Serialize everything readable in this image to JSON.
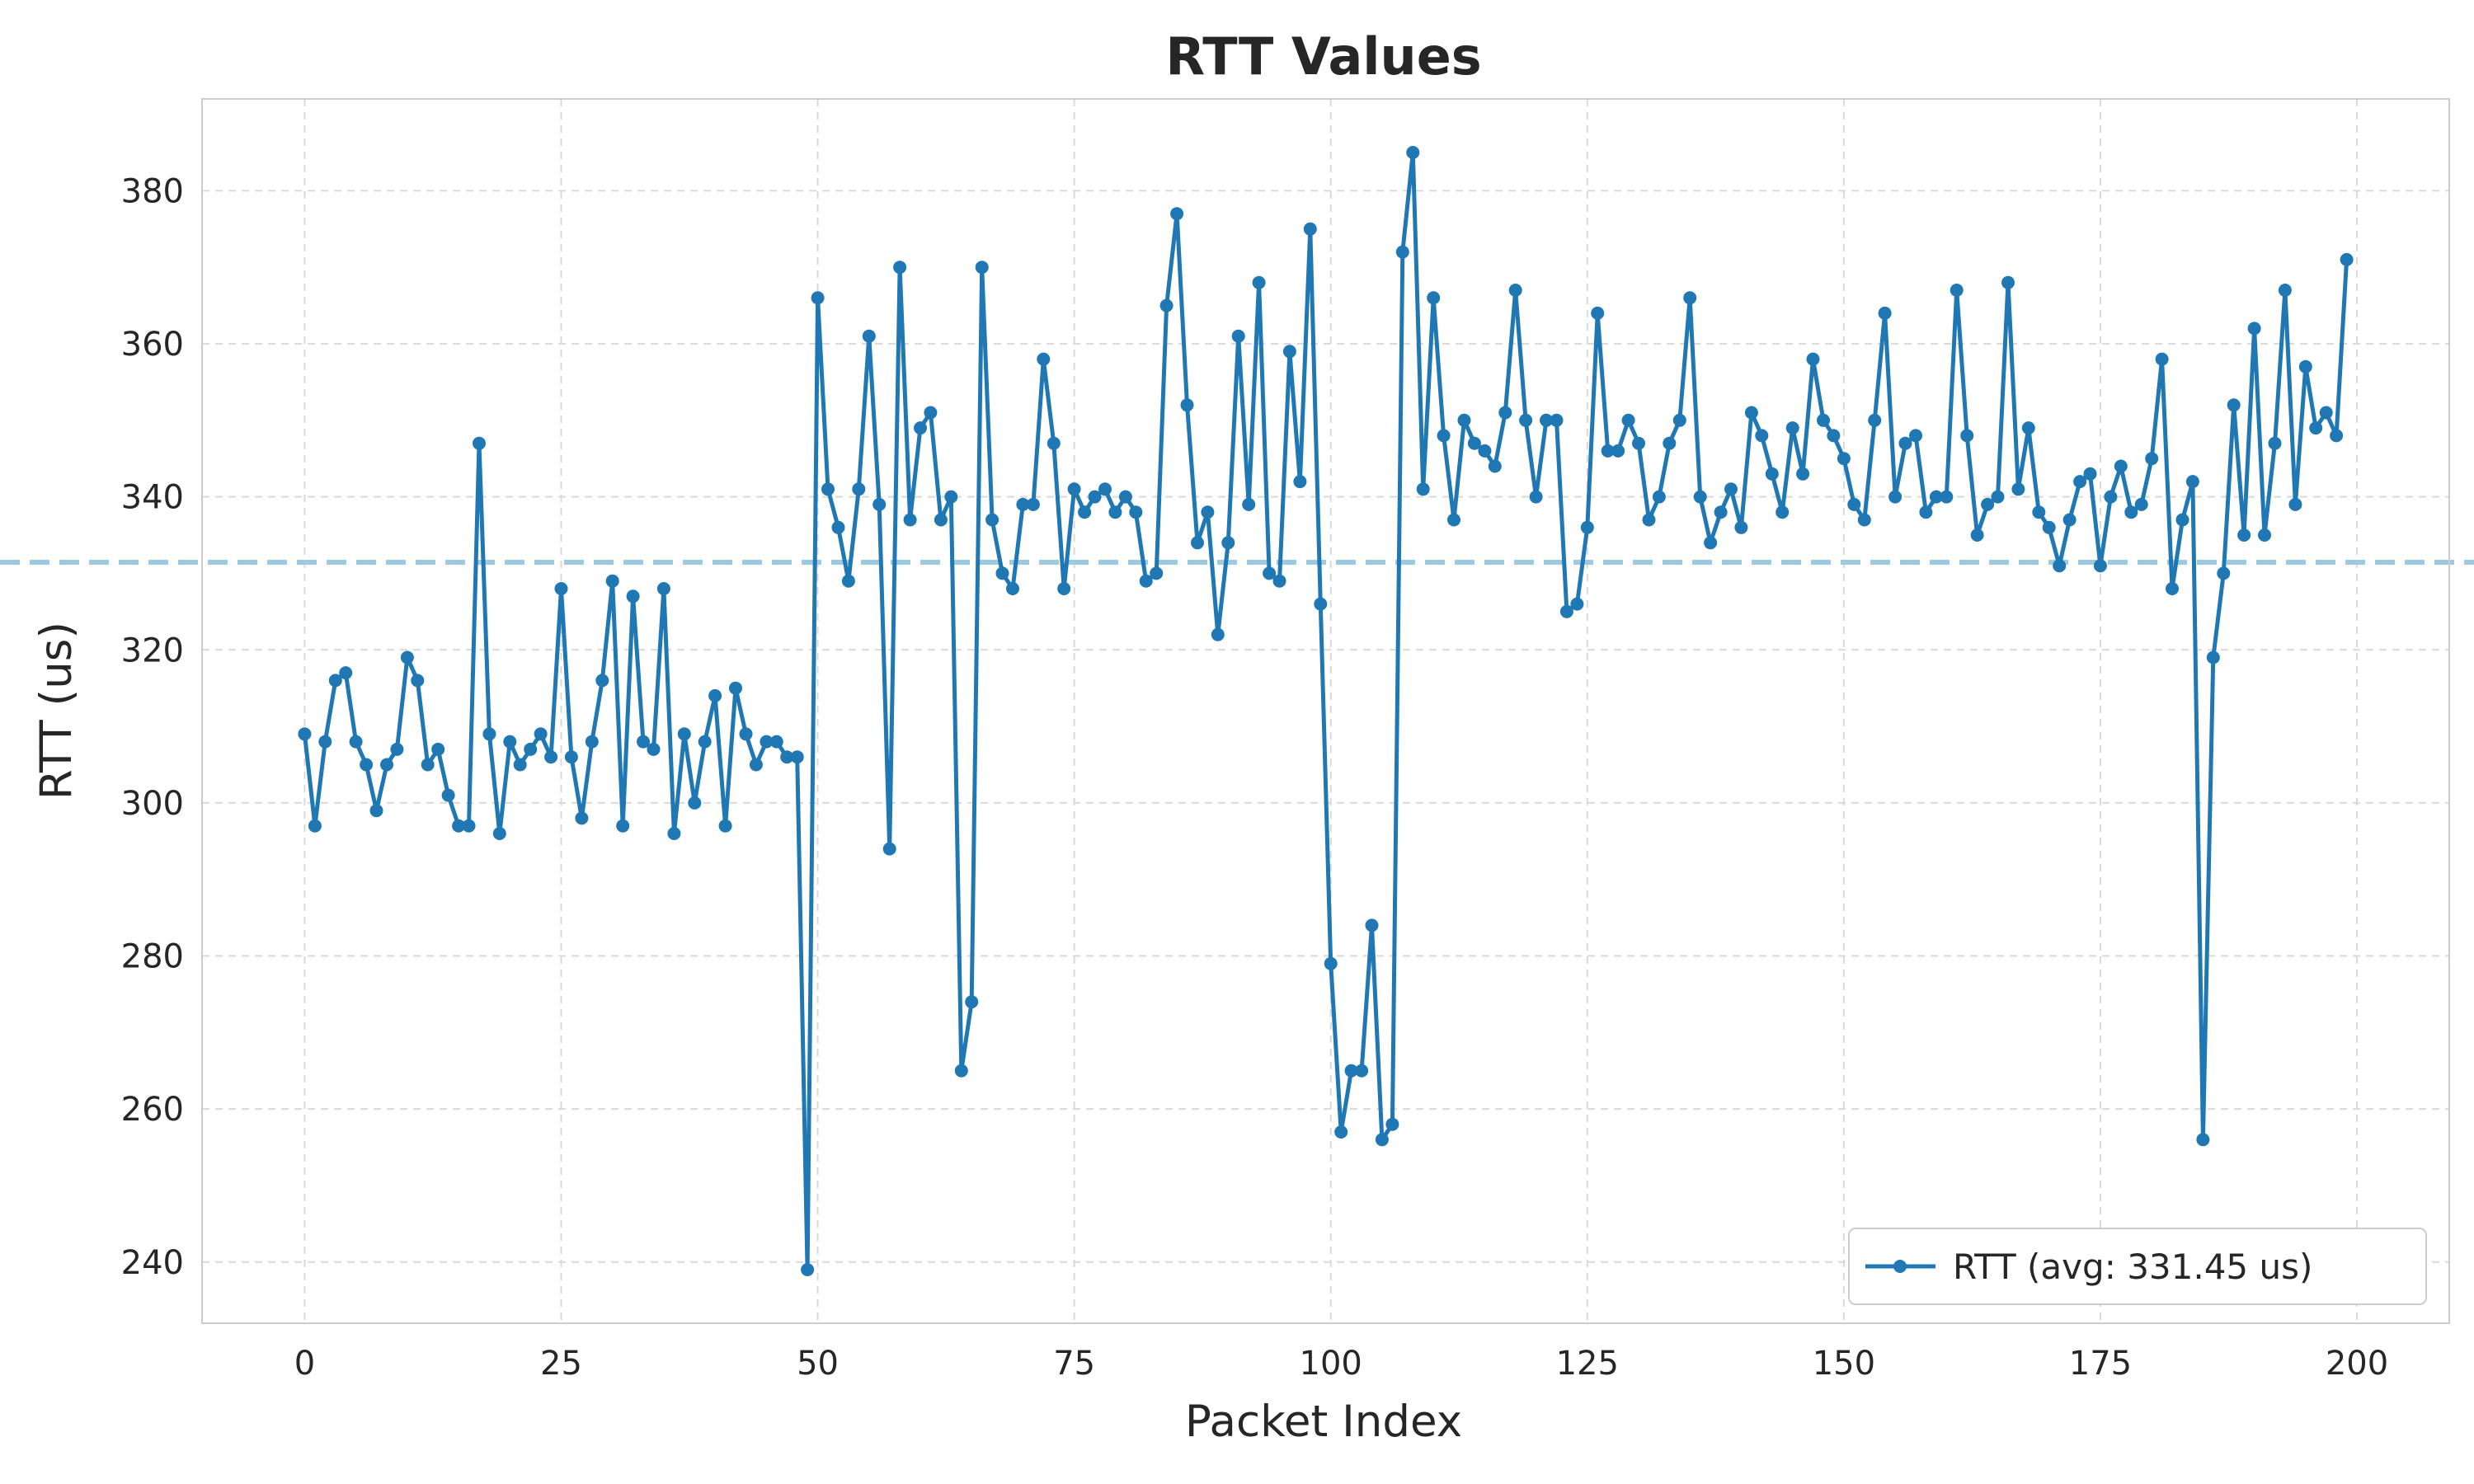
{
  "chart_data": {
    "type": "line",
    "title": "RTT Values",
    "xlabel": "Packet Index",
    "ylabel": "RTT (us)",
    "xlim": [
      -10,
      209
    ],
    "ylim": [
      232,
      392
    ],
    "x_ticks": [
      0,
      25,
      50,
      75,
      100,
      125,
      150,
      175,
      200
    ],
    "y_ticks": [
      240,
      260,
      280,
      300,
      320,
      340,
      360,
      380
    ],
    "x_tick_labels": [
      "0",
      "25",
      "50",
      "75",
      "100",
      "125",
      "150",
      "175",
      "200"
    ],
    "y_tick_labels": [
      "240",
      "260",
      "280",
      "300",
      "320",
      "340",
      "360",
      "380"
    ],
    "grid": true,
    "legend_position": "lower-right",
    "colors": {
      "line": "#1f77b4",
      "average_line": "#9ecae1",
      "grid": "#d9d9d9",
      "spine": "#cccccc"
    },
    "average_line": {
      "value": 331.45,
      "style": "dashed"
    },
    "series": [
      {
        "name": "RTT (avg: 331.45 us)",
        "x_start": 0,
        "values": [
          309,
          297,
          308,
          316,
          317,
          308,
          305,
          299,
          305,
          307,
          319,
          316,
          305,
          307,
          301,
          297,
          297,
          347,
          309,
          296,
          308,
          305,
          307,
          309,
          306,
          328,
          306,
          298,
          308,
          316,
          329,
          297,
          327,
          308,
          307,
          328,
          296,
          309,
          300,
          308,
          314,
          297,
          315,
          309,
          305,
          308,
          308,
          306,
          306,
          239,
          366,
          341,
          336,
          329,
          341,
          361,
          339,
          294,
          370,
          337,
          349,
          351,
          337,
          340,
          265,
          274,
          370,
          337,
          330,
          328,
          339,
          339,
          358,
          347,
          328,
          341,
          338,
          340,
          341,
          338,
          340,
          338,
          329,
          330,
          365,
          377,
          352,
          334,
          338,
          322,
          334,
          361,
          339,
          368,
          330,
          329,
          359,
          342,
          375,
          326,
          279,
          257,
          265,
          265,
          284,
          256,
          258,
          372,
          385,
          341,
          366,
          348,
          337,
          350,
          347,
          346,
          344,
          351,
          367,
          350,
          340,
          350,
          350,
          325,
          326,
          336,
          364,
          346,
          346,
          350,
          347,
          337,
          340,
          347,
          350,
          366,
          340,
          334,
          338,
          341,
          336,
          351,
          348,
          343,
          338,
          349,
          343,
          358,
          350,
          348,
          345,
          339,
          337,
          350,
          364,
          340,
          347,
          348,
          338,
          340,
          340,
          367,
          348,
          335,
          339,
          340,
          368,
          341,
          349,
          338,
          336,
          331,
          337,
          342,
          343,
          331,
          340,
          344,
          338,
          339,
          345,
          358,
          328,
          337,
          342,
          256,
          319,
          330,
          352,
          335,
          362,
          335,
          347,
          367,
          339,
          357,
          349,
          351,
          348,
          371
        ]
      }
    ]
  }
}
